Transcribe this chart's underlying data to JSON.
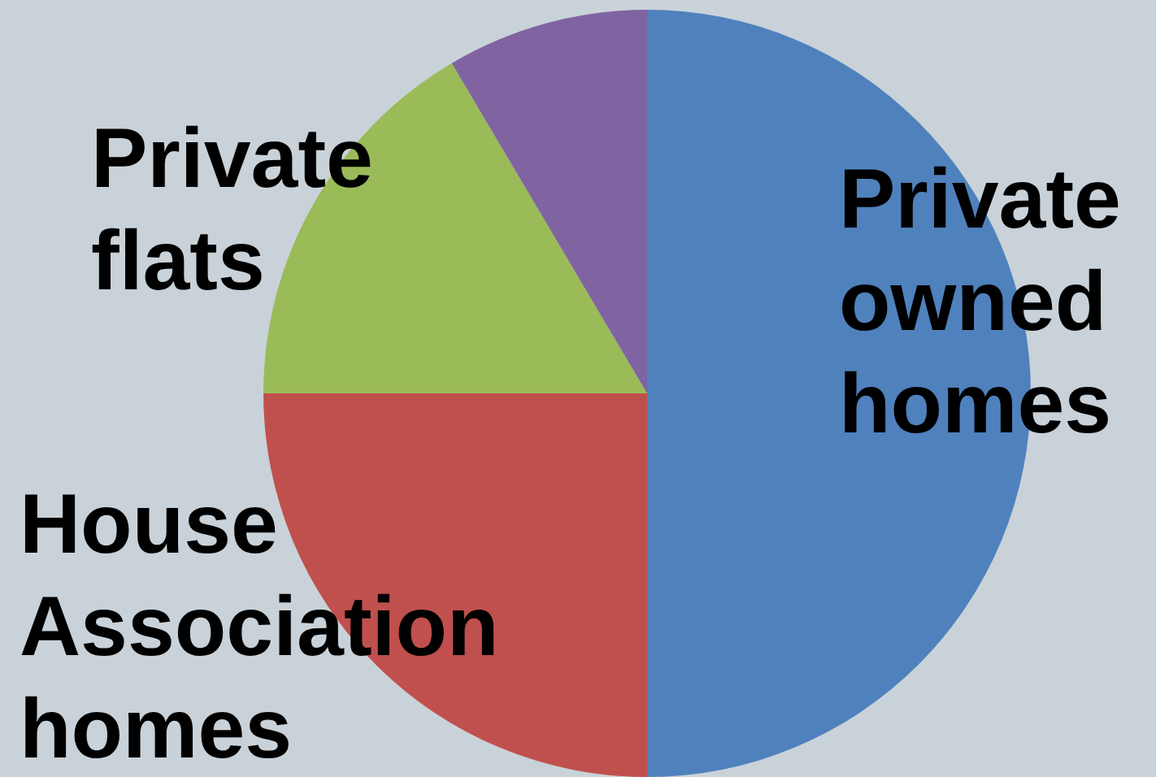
{
  "chart_data": {
    "type": "pie",
    "categories": [
      "Private owned homes",
      "House Association homes",
      "Private flats",
      null
    ],
    "values": [
      50,
      25,
      16.5,
      8.5
    ],
    "colors": [
      "#4f81bd",
      "#c0504d",
      "#9bbb59",
      "#8064a2"
    ],
    "legend": false
  }
}
